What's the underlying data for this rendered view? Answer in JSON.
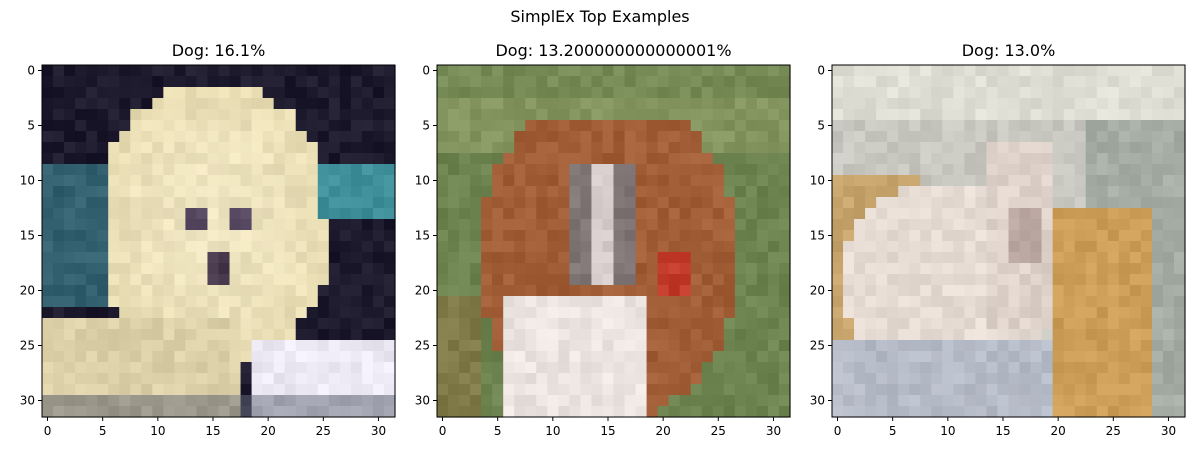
{
  "figure": {
    "title": "SimplEx Top Examples"
  },
  "chart_data": [
    {
      "type": "image",
      "title": "Dog: 16.1%",
      "xlim": [
        -0.5,
        31.5
      ],
      "ylim": [
        31.5,
        -0.5
      ],
      "xticks": [
        0,
        5,
        10,
        15,
        20,
        25,
        30
      ],
      "yticks": [
        0,
        5,
        10,
        15,
        20,
        25,
        30
      ],
      "image_desc": "pixelated fluffy cream-colored dog, dark background, white cloth lower right",
      "palette": {
        "bg": "#1e1a2e",
        "subject": "#e8dcb2",
        "accent": "#3f8f9a",
        "low": "#ece8f4"
      }
    },
    {
      "type": "image",
      "title": "Dog: 13.200000000000001%",
      "xlim": [
        -0.5,
        31.5
      ],
      "ylim": [
        31.5,
        -0.5
      ],
      "xticks": [
        0,
        5,
        10,
        15,
        20,
        25,
        30
      ],
      "yticks": [
        0,
        5,
        10,
        15,
        20,
        25,
        30
      ],
      "image_desc": "pixelated brown and white boxer dog with red collar on green grass",
      "palette": {
        "bg": "#6e8450",
        "subject": "#a9643a",
        "accent": "#c23a2a",
        "low": "#f0ece8"
      }
    },
    {
      "type": "image",
      "title": "Dog: 13.0%",
      "xlim": [
        -0.5,
        31.5
      ],
      "ylim": [
        31.5,
        -0.5
      ],
      "xticks": [
        0,
        5,
        10,
        15,
        20,
        25,
        30
      ],
      "yticks": [
        0,
        5,
        10,
        15,
        20,
        25,
        30
      ],
      "image_desc": "pale blurred dog lying on a couch, orange-tan patches, grey-blue tones",
      "palette": {
        "bg": "#c8c8c0",
        "subject": "#e6dcd4",
        "accent": "#c8954a",
        "low": "#a6b0c4"
      }
    }
  ]
}
